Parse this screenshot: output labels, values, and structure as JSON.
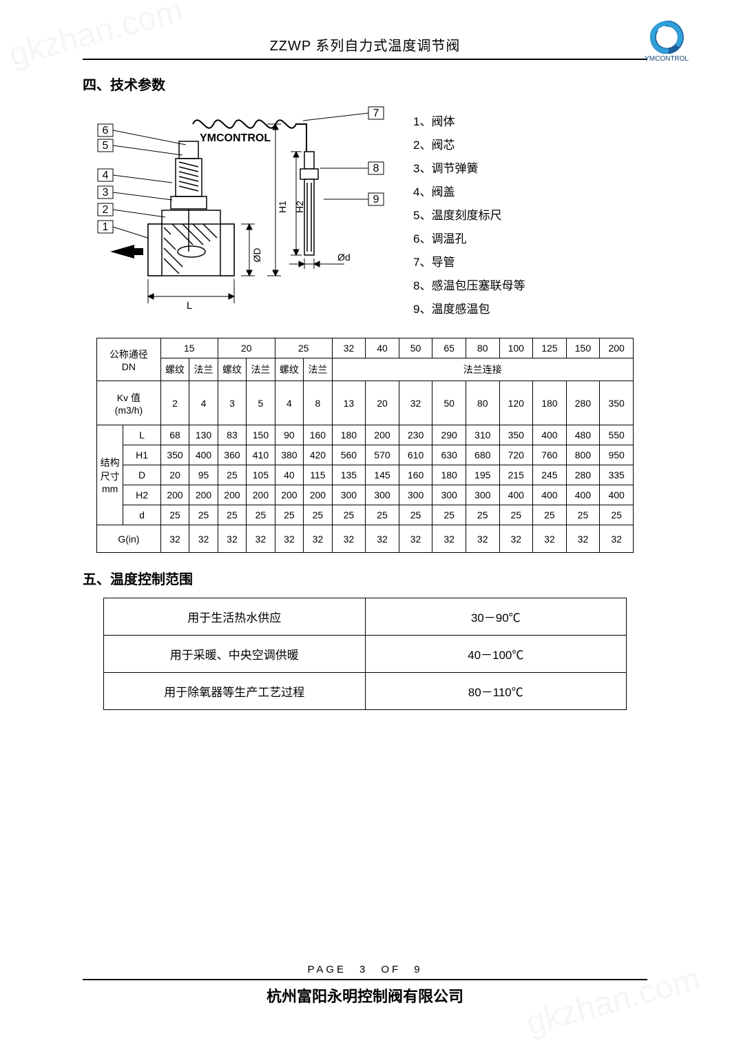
{
  "watermark": "gkzhan.com",
  "header": {
    "title": "ZZWP 系列自力式温度调节阀",
    "logo_text": "YMCONTROL",
    "logo_color": "#1e5f9e",
    "logo_accent": "#2fa0d8"
  },
  "section4": {
    "title": "四、技术参数",
    "diagram_brand": "YMCONTROL",
    "callouts": [
      "1",
      "2",
      "3",
      "4",
      "5",
      "6",
      "7",
      "8",
      "9"
    ],
    "dims": {
      "L": "L",
      "H1": "H1",
      "H2": "H2",
      "D": "ØD",
      "d": "Ød"
    },
    "legend": [
      "1、阀体",
      "2、阀芯",
      "3、调节弹簧",
      "4、阀盖",
      "5、温度刻度标尺",
      "6、调温孔",
      "7、导管",
      "8、感温包压塞联母等",
      "9、温度感温包"
    ]
  },
  "spec_table": {
    "row1_label": "公称通径\nDN",
    "dn_spanned": [
      "15",
      "20",
      "25"
    ],
    "dn_single": [
      "32",
      "40",
      "50",
      "65",
      "80",
      "100",
      "125",
      "150",
      "200"
    ],
    "conn_labels": [
      "螺纹",
      "法兰",
      "螺纹",
      "法兰",
      "螺纹",
      "法兰"
    ],
    "flange_label": "法兰连接",
    "kv_label": "Kv 值\n(m3/h)",
    "kv": [
      "2",
      "4",
      "3",
      "5",
      "4",
      "8",
      "13",
      "20",
      "32",
      "50",
      "80",
      "120",
      "180",
      "280",
      "350"
    ],
    "dim_group_label": "结构\n尺寸\nmm",
    "dim_rows": [
      {
        "k": "L",
        "v": [
          "68",
          "130",
          "83",
          "150",
          "90",
          "160",
          "180",
          "200",
          "230",
          "290",
          "310",
          "350",
          "400",
          "480",
          "550"
        ]
      },
      {
        "k": "H1",
        "v": [
          "350",
          "400",
          "360",
          "410",
          "380",
          "420",
          "560",
          "570",
          "610",
          "630",
          "680",
          "720",
          "760",
          "800",
          "950"
        ]
      },
      {
        "k": "D",
        "v": [
          "20",
          "95",
          "25",
          "105",
          "40",
          "115",
          "135",
          "145",
          "160",
          "180",
          "195",
          "215",
          "245",
          "280",
          "335"
        ]
      },
      {
        "k": "H2",
        "v": [
          "200",
          "200",
          "200",
          "200",
          "200",
          "200",
          "300",
          "300",
          "300",
          "300",
          "300",
          "400",
          "400",
          "400",
          "400"
        ]
      },
      {
        "k": "d",
        "v": [
          "25",
          "25",
          "25",
          "25",
          "25",
          "25",
          "25",
          "25",
          "25",
          "25",
          "25",
          "25",
          "25",
          "25",
          "25"
        ]
      }
    ],
    "g_label": "G(in)",
    "g": [
      "32",
      "32",
      "32",
      "32",
      "32",
      "32",
      "32",
      "32",
      "32",
      "32",
      "32",
      "32",
      "32",
      "32",
      "32"
    ]
  },
  "section5": {
    "title": "五、温度控制范围",
    "rows": [
      {
        "use": "用于生活热水供应",
        "range": "30－90℃"
      },
      {
        "use": "用于采暖、中央空调供暖",
        "range": "40－100℃"
      },
      {
        "use": "用于除氧器等生产工艺过程",
        "range": "80－110℃"
      }
    ]
  },
  "footer": {
    "page": "PAGE　3　OF　9",
    "company": "杭州富阳永明控制阀有限公司"
  }
}
